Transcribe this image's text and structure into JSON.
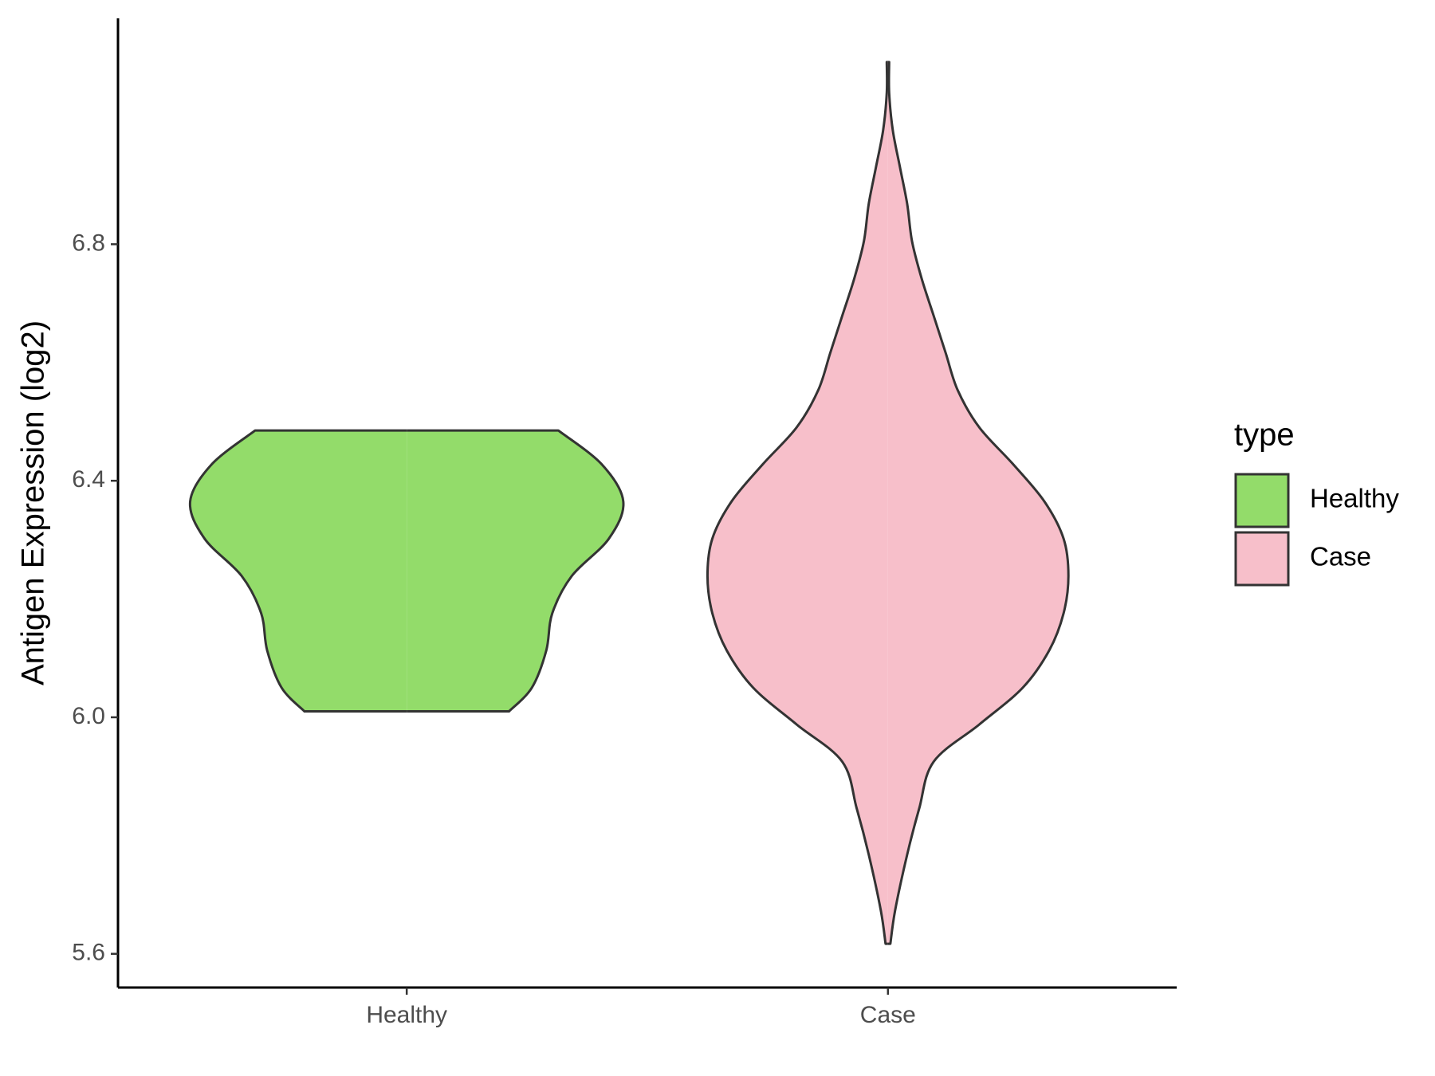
{
  "chart_data": {
    "type": "violin",
    "y_label": "Antigen Expression (log2)",
    "categories": [
      "Healthy",
      "Case"
    ],
    "ylim": [
      5.543,
      7.182
    ],
    "yticks": [
      5.6,
      {
        "value": 6,
        "label": "6.0"
      },
      6.4,
      6.8
    ],
    "legend_title": "type",
    "legend_position": "right",
    "series": [
      {
        "name": "Healthy",
        "color": "#93dc6a",
        "y": [
          6.01,
          6.05,
          6.113,
          6.176,
          6.239,
          6.302,
          6.365,
          6.428,
          6.485
        ],
        "density": [
          0.425,
          0.52,
          0.58,
          0.605,
          0.686,
          0.84,
          0.9,
          0.81,
          0.63
        ]
      },
      {
        "name": "Case",
        "color": "#f7bfca",
        "y": [
          5.617,
          5.674,
          5.768,
          5.846,
          5.925,
          5.988,
          6.05,
          6.113,
          6.176,
          6.239,
          6.302,
          6.365,
          6.428,
          6.49,
          6.553,
          6.616,
          6.679,
          6.742,
          6.805,
          6.868,
          6.93,
          6.993,
          7.056,
          7.108
        ],
        "density": [
          0.01,
          0.03,
          0.08,
          0.13,
          0.19,
          0.38,
          0.56,
          0.67,
          0.73,
          0.75,
          0.73,
          0.65,
          0.52,
          0.38,
          0.29,
          0.24,
          0.19,
          0.14,
          0.1,
          0.08,
          0.05,
          0.02,
          0.005,
          0.005
        ]
      }
    ]
  }
}
